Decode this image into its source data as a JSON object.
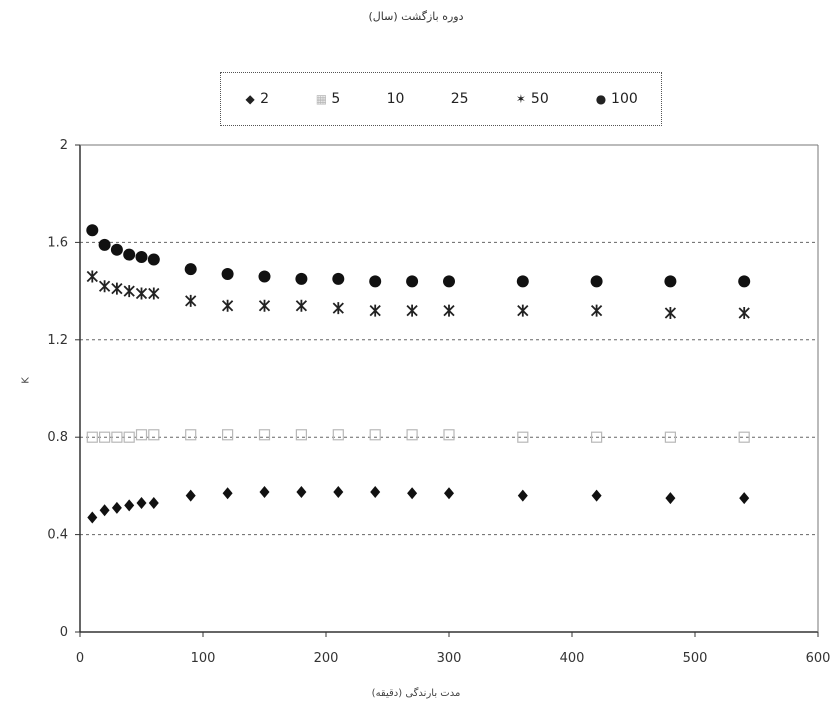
{
  "chart_data": {
    "type": "scatter",
    "title": "دوره بازگشت (سال)",
    "xlabel": "مدت بارندگی (دقیقه)",
    "ylabel": "K",
    "xlim": [
      0,
      600
    ],
    "ylim": [
      0,
      2
    ],
    "xticks": [
      "0",
      "100",
      "200",
      "300",
      "400",
      "500",
      "600"
    ],
    "yticks": [
      "0",
      "0.4",
      "0.8",
      "1.2",
      "1.6",
      "2"
    ],
    "grid": "horizontal dashed",
    "legend_position": "top",
    "x": [
      10,
      20,
      30,
      40,
      50,
      60,
      90,
      120,
      150,
      180,
      210,
      240,
      270,
      300,
      360,
      420,
      480,
      540
    ],
    "series": [
      {
        "name": "2",
        "marker": "diamond",
        "color": "#111111",
        "values": [
          0.47,
          0.5,
          0.51,
          0.52,
          0.53,
          0.53,
          0.56,
          0.57,
          0.575,
          0.575,
          0.575,
          0.575,
          0.57,
          0.57,
          0.56,
          0.56,
          0.55,
          0.55
        ]
      },
      {
        "name": "5",
        "marker": "square",
        "color": "#b8b8b8",
        "values": [
          0.8,
          0.8,
          0.8,
          0.8,
          0.81,
          0.81,
          0.81,
          0.81,
          0.81,
          0.81,
          0.81,
          0.81,
          0.81,
          0.81,
          0.8,
          0.8,
          0.8,
          0.8
        ]
      },
      {
        "name": "10",
        "marker": "none",
        "color": "#cccccc",
        "values": []
      },
      {
        "name": "25",
        "marker": "none",
        "color": "#cccccc",
        "values": []
      },
      {
        "name": "50",
        "marker": "star",
        "color": "#222222",
        "values": [
          1.46,
          1.42,
          1.41,
          1.4,
          1.39,
          1.39,
          1.36,
          1.34,
          1.34,
          1.34,
          1.33,
          1.32,
          1.32,
          1.32,
          1.32,
          1.32,
          1.31,
          1.31
        ]
      },
      {
        "name": "100",
        "marker": "circle",
        "color": "#111111",
        "values": [
          1.65,
          1.59,
          1.57,
          1.55,
          1.54,
          1.53,
          1.49,
          1.47,
          1.46,
          1.45,
          1.45,
          1.44,
          1.44,
          1.44,
          1.44,
          1.44,
          1.44,
          1.44
        ]
      }
    ]
  }
}
